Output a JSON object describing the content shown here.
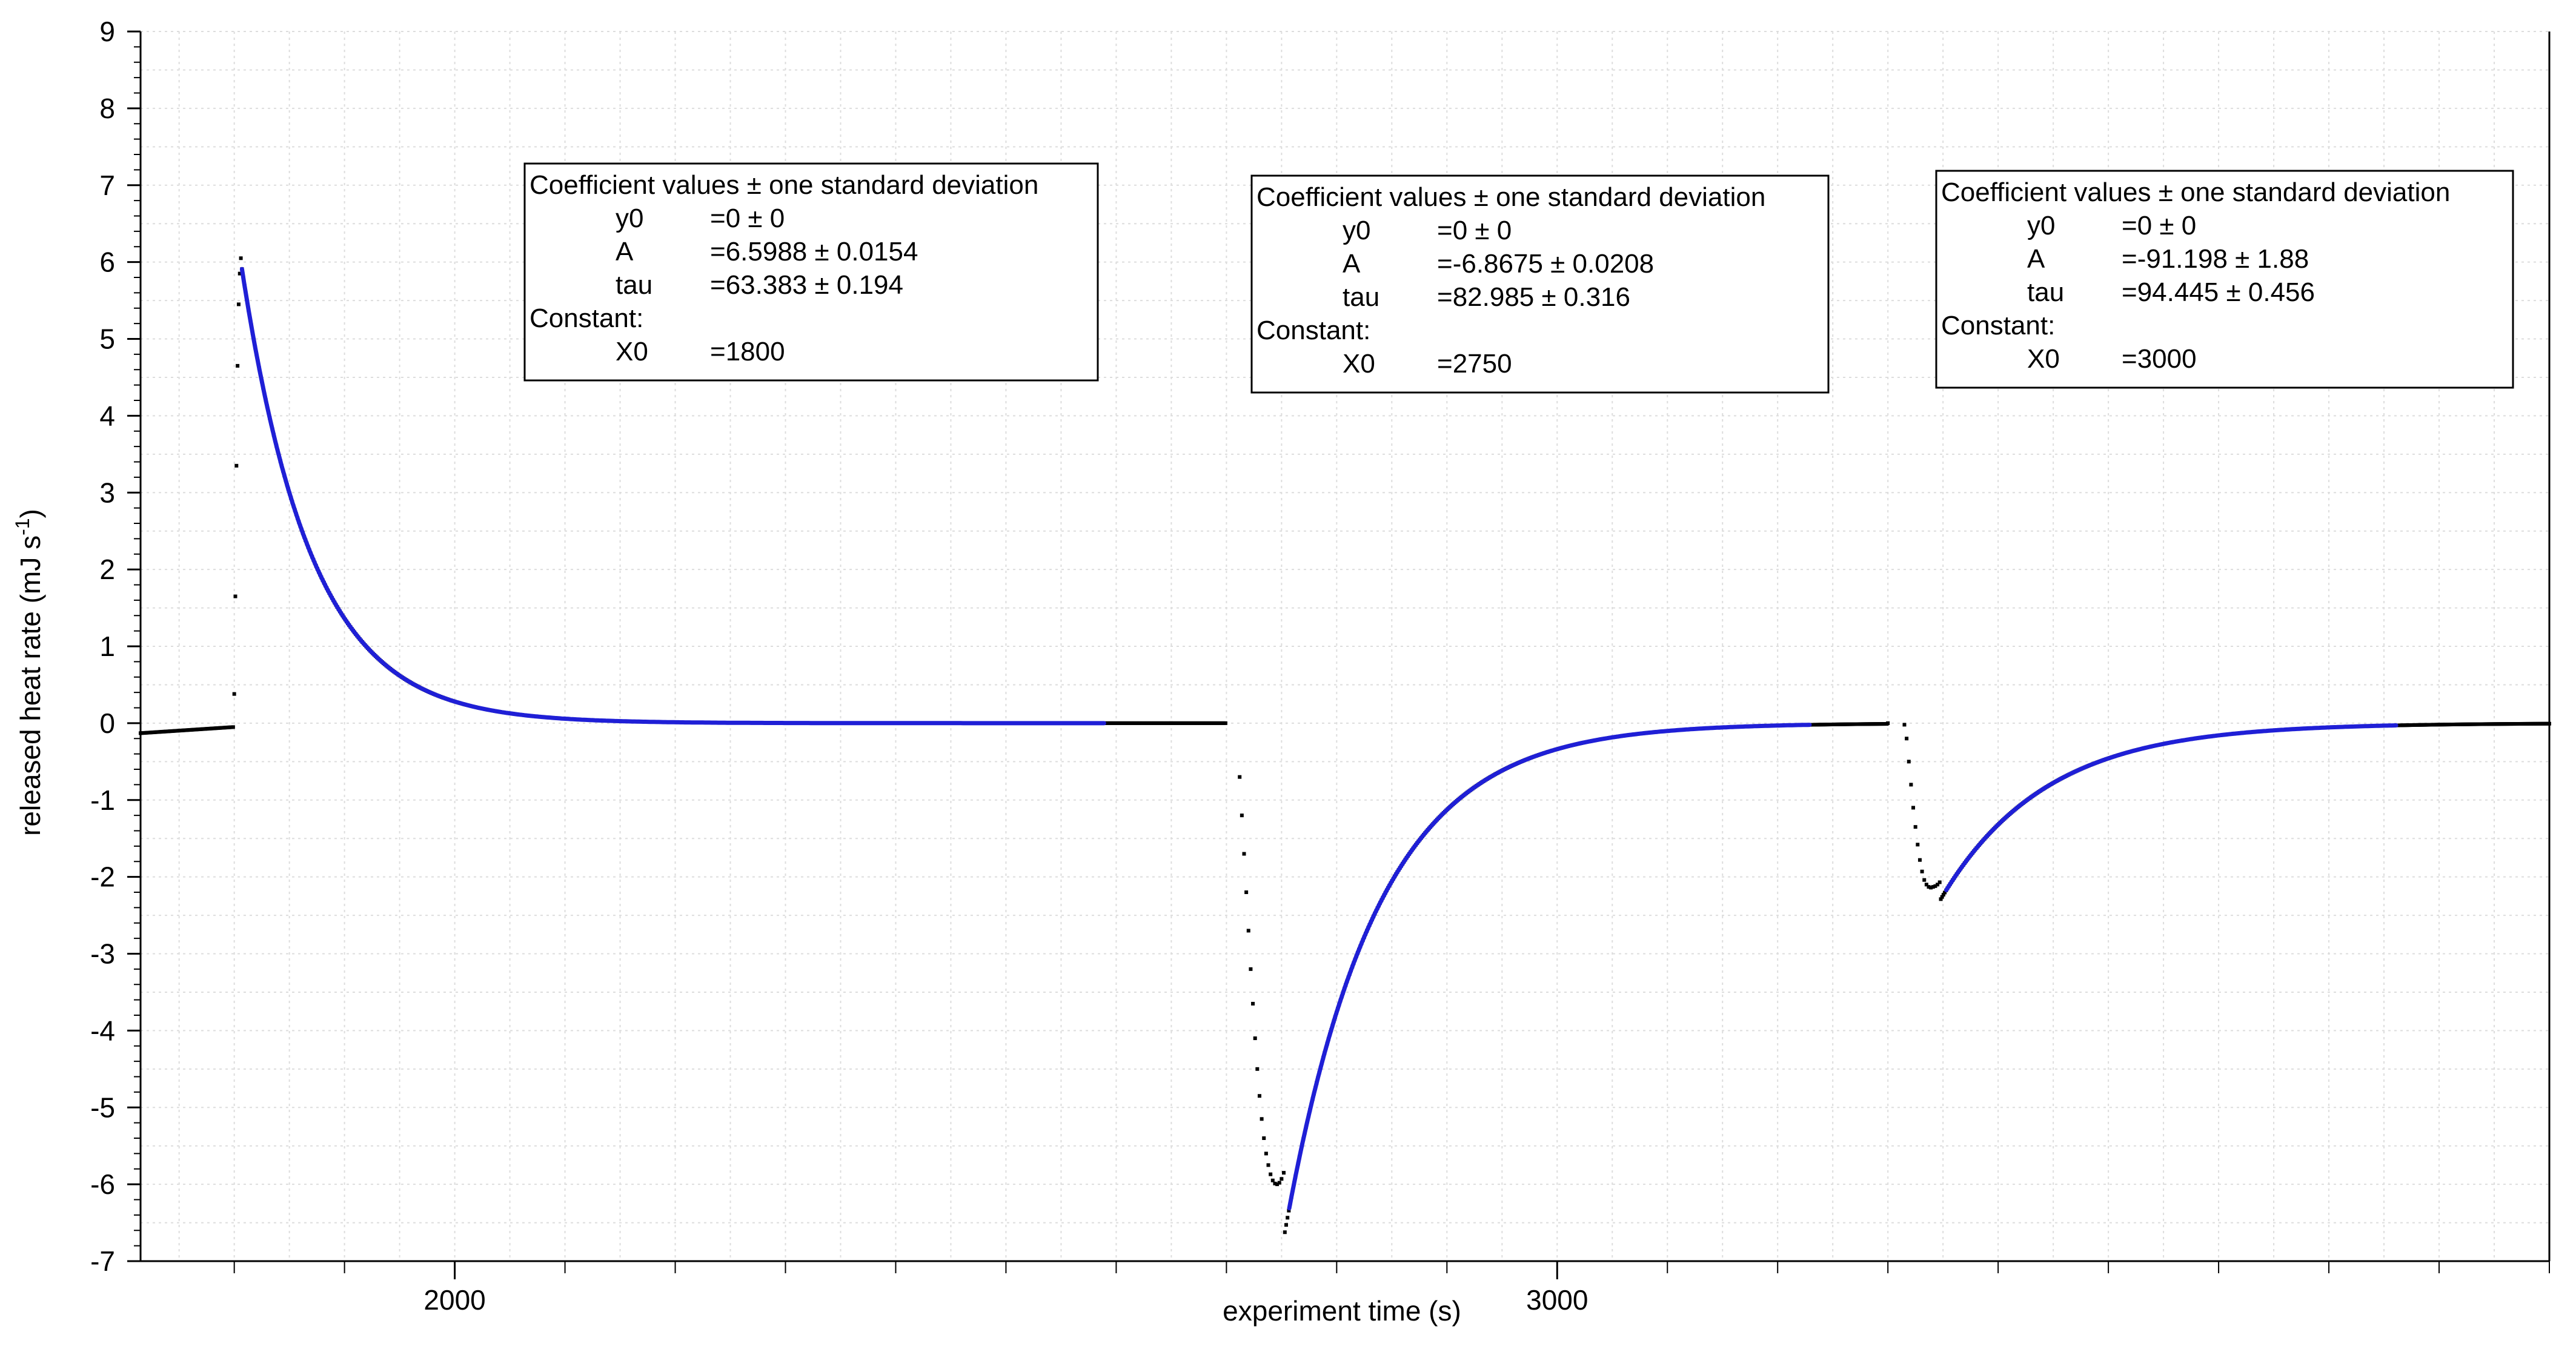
{
  "chart_data": {
    "type": "scatter",
    "xlabel": "experiment time (s)",
    "ylabel": "released heat rate (mJ  s",
    "ylabel_sup": "-1",
    "ylabel_close": ")",
    "xlim": [
      1715,
      3900
    ],
    "ylim": [
      -7,
      9
    ],
    "x_ticks_labeled": [
      2000,
      3000
    ],
    "x_tick_labels": [
      "2000",
      "3000"
    ],
    "x_minor_step": 100,
    "y_ticks": [
      -7,
      -6,
      -5,
      -4,
      -3,
      -2,
      -1,
      0,
      1,
      2,
      3,
      4,
      5,
      6,
      7,
      8,
      9
    ],
    "y_tick_labels": [
      "-7",
      "-6",
      "-5",
      "-4",
      "-3",
      "-2",
      "-1",
      "0",
      "1",
      "2",
      "3",
      "4",
      "5",
      "6",
      "7",
      "8",
      "9"
    ],
    "grid": true,
    "grid_color": "#dddddd",
    "data_color": "#000000",
    "fit_color": "#1f1fd6",
    "data_segments": [
      {
        "kind": "linear",
        "x0": 1715,
        "x1": 1800,
        "y0": -0.13,
        "y1": -0.05,
        "step": 1.2
      },
      {
        "kind": "points",
        "points": [
          [
            1800,
            0.38
          ],
          [
            1801,
            1.65
          ],
          [
            1802,
            3.35
          ],
          [
            1803,
            4.65
          ],
          [
            1804,
            5.45
          ],
          [
            1805,
            5.85
          ],
          [
            1806,
            6.05
          ]
        ]
      },
      {
        "kind": "exp",
        "x0": 1800,
        "A": 6.5988,
        "tau": 63.383,
        "from": 1807,
        "to": 2650,
        "step": 1.2
      },
      {
        "kind": "linear",
        "x0": 2650,
        "x1": 2700,
        "y0": 0.0,
        "y1": 0.0,
        "step": 1.2
      },
      {
        "kind": "points",
        "points": [
          [
            2712,
            -0.7
          ],
          [
            2714,
            -1.2
          ],
          [
            2716,
            -1.7
          ],
          [
            2718,
            -2.2
          ],
          [
            2720,
            -2.7
          ],
          [
            2722,
            -3.2
          ],
          [
            2724,
            -3.65
          ],
          [
            2726,
            -4.1
          ],
          [
            2728,
            -4.5
          ],
          [
            2730,
            -4.85
          ],
          [
            2732,
            -5.15
          ],
          [
            2734,
            -5.4
          ],
          [
            2736,
            -5.6
          ],
          [
            2738,
            -5.75
          ],
          [
            2740,
            -5.87
          ],
          [
            2742,
            -5.95
          ],
          [
            2744,
            -5.99
          ],
          [
            2746,
            -6.0
          ],
          [
            2748,
            -5.98
          ],
          [
            2750,
            -5.93
          ],
          [
            2752,
            -5.85
          ]
        ]
      },
      {
        "kind": "exp",
        "x0": 2750,
        "A": -6.8675,
        "tau": 82.985,
        "from": 2753,
        "to": 3300,
        "step": 1.2
      },
      {
        "kind": "linear",
        "x0": 3300,
        "x1": 3300,
        "y0": 0.0,
        "y1": 0.0,
        "step": 1.2
      },
      {
        "kind": "points",
        "points": [
          [
            3315,
            -0.02
          ],
          [
            3317,
            -0.2
          ],
          [
            3319,
            -0.5
          ],
          [
            3321,
            -0.8
          ],
          [
            3323,
            -1.1
          ],
          [
            3325,
            -1.35
          ],
          [
            3327,
            -1.58
          ],
          [
            3329,
            -1.78
          ],
          [
            3331,
            -1.93
          ],
          [
            3333,
            -2.04
          ],
          [
            3335,
            -2.1
          ],
          [
            3337,
            -2.13
          ],
          [
            3339,
            -2.14
          ],
          [
            3341,
            -2.13
          ],
          [
            3343,
            -2.12
          ],
          [
            3345,
            -2.1
          ],
          [
            3347,
            -2.07
          ]
        ]
      },
      {
        "kind": "exp",
        "x0": 3000,
        "A": -91.198,
        "tau": 94.445,
        "from": 3348,
        "to": 3900,
        "step": 1.2
      }
    ],
    "fits": [
      {
        "x0": 1800,
        "A": 6.5988,
        "tau": 63.383,
        "from": 1807,
        "to": 2590
      },
      {
        "x0": 2750,
        "A": -6.8675,
        "tau": 82.985,
        "from": 2757,
        "to": 3230
      },
      {
        "x0": 3000,
        "A": -91.198,
        "tau": 94.445,
        "from": 3353,
        "to": 3762
      }
    ],
    "annotations": [
      {
        "header": "Coefficient values ± one standard deviation",
        "rows": [
          {
            "name": "y0",
            "value": "=0 ± 0"
          },
          {
            "name": "A",
            "value": "=6.5988 ± 0.0154"
          },
          {
            "name": "tau",
            "value": "=63.383 ± 0.194"
          }
        ],
        "constant_label": "Constant:",
        "constant": {
          "name": "X0",
          "value": "=1800"
        }
      },
      {
        "header": "Coefficient values ± one standard deviation",
        "rows": [
          {
            "name": "y0",
            "value": "=0 ± 0"
          },
          {
            "name": "A",
            "value": "=-6.8675 ± 0.0208"
          },
          {
            "name": "tau",
            "value": "=82.985 ± 0.316"
          }
        ],
        "constant_label": "Constant:",
        "constant": {
          "name": "X0",
          "value": "=2750"
        }
      },
      {
        "header": "Coefficient values ± one standard deviation",
        "rows": [
          {
            "name": "y0",
            "value": "=0 ± 0"
          },
          {
            "name": "A",
            "value": "=-91.198 ± 1.88"
          },
          {
            "name": "tau",
            "value": "=94.445 ± 0.456"
          }
        ],
        "constant_label": "Constant:",
        "constant": {
          "name": "X0",
          "value": "=3000"
        }
      }
    ]
  }
}
